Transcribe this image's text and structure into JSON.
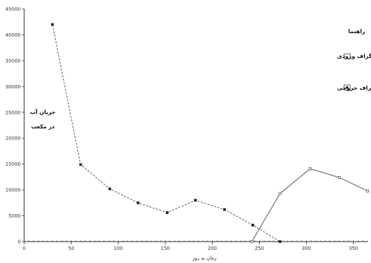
{
  "chart_data": {
    "type": "line",
    "title": "",
    "xlabel": "زمان به روز",
    "ylabel_lines": [
      "جریان آب",
      "در مکعب"
    ],
    "xlim": [
      0,
      365
    ],
    "ylim": [
      0,
      45000
    ],
    "xticks": [
      0,
      50,
      100,
      150,
      200,
      250,
      300,
      350
    ],
    "yticks": [
      0,
      5000,
      10000,
      15000,
      20000,
      25000,
      30000,
      35000,
      40000,
      45000
    ],
    "grid": false,
    "legend": {
      "title": "راهنما",
      "placement": "right"
    },
    "series": [
      {
        "name": "نارهیدروگراف ورودی",
        "marker": "square",
        "line": "solid",
        "x": [
          242,
          272,
          304,
          335,
          365
        ],
        "y": [
          0,
          9300,
          14100,
          12400,
          9800
        ]
      },
      {
        "name": "نارهیدروگراف خروجی",
        "marker": "filled-square",
        "line": "dashed",
        "x": [
          30,
          60,
          91,
          121,
          152,
          182,
          213,
          243,
          272
        ],
        "y": [
          42000,
          14900,
          10200,
          7500,
          5600,
          8000,
          6200,
          3200,
          0
        ]
      }
    ]
  }
}
